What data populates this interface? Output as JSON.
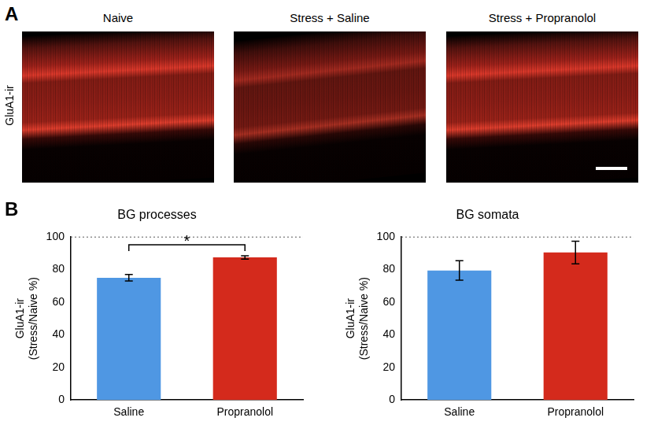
{
  "figure": {
    "panel_labels": [
      "A",
      "B"
    ],
    "images": {
      "row_label": "GluA1-ir",
      "titles": [
        "Naive",
        "Stress + Saline",
        "Stress + Propranolol"
      ]
    }
  },
  "chart_data": [
    {
      "type": "bar",
      "title": "BG processes",
      "y_label": [
        "GluA1-ir",
        "(Stress/Naive %)"
      ],
      "categories": [
        "Saline",
        "Propranolol"
      ],
      "values": [
        75,
        87.5
      ],
      "errors": [
        2,
        1
      ],
      "colors": [
        "#4f97e3",
        "#d42a1c"
      ],
      "ylim": [
        0,
        100
      ],
      "yticks": [
        0,
        20,
        40,
        60,
        80,
        100
      ],
      "grid": false,
      "reference_line": 100,
      "significance": {
        "between": [
          "Saline",
          "Propranolol"
        ],
        "label": "*"
      }
    },
    {
      "type": "bar",
      "title": "BG somata",
      "y_label": [
        "GluA1-ir",
        "(Stress/Naive %)"
      ],
      "categories": [
        "Saline",
        "Propranolol"
      ],
      "values": [
        79.5,
        90.5
      ],
      "errors": [
        6,
        7
      ],
      "colors": [
        "#4f97e3",
        "#d42a1c"
      ],
      "ylim": [
        0,
        100
      ],
      "yticks": [
        0,
        20,
        40,
        60,
        80,
        100
      ],
      "grid": false,
      "reference_line": 100
    }
  ]
}
